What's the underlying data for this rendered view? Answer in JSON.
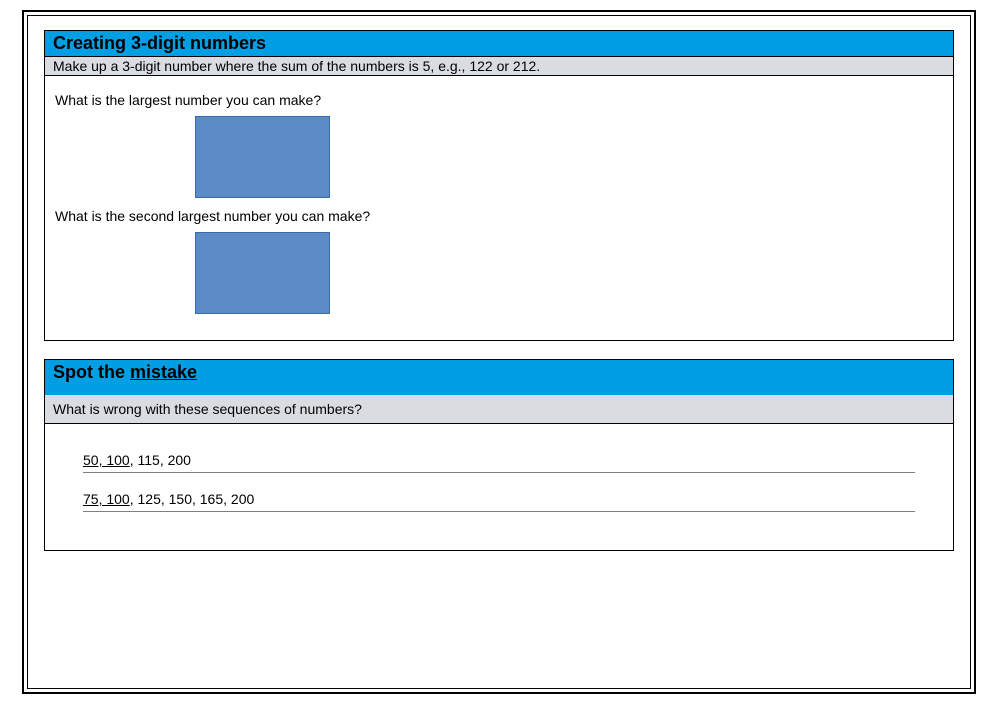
{
  "colors": {
    "title_bg": "#009fe3",
    "subtitle_bg": "#d9dde2",
    "answer_box_fill": "#5b8cc5",
    "answer_box_border": "#3c6aa8",
    "text": "#000000",
    "rule": "#808080"
  },
  "section1": {
    "title": "Creating 3-digit numbers",
    "subtitle": "Make up a 3-digit number where the sum of the numbers is 5, e.g., 122 or 212.",
    "q1": "What is the largest number you can make?",
    "q2": "What is the second largest number you can make?"
  },
  "section2": {
    "title_plain": "Spot the ",
    "title_uline": "mistake",
    "subtitle": "What is wrong with these sequences of numbers?",
    "seq1_uline": "50, 100",
    "seq1_rest": ", 115, 200",
    "seq2_uline": "75, 100",
    "seq2_rest": ", 125, 150, 165, 200"
  }
}
